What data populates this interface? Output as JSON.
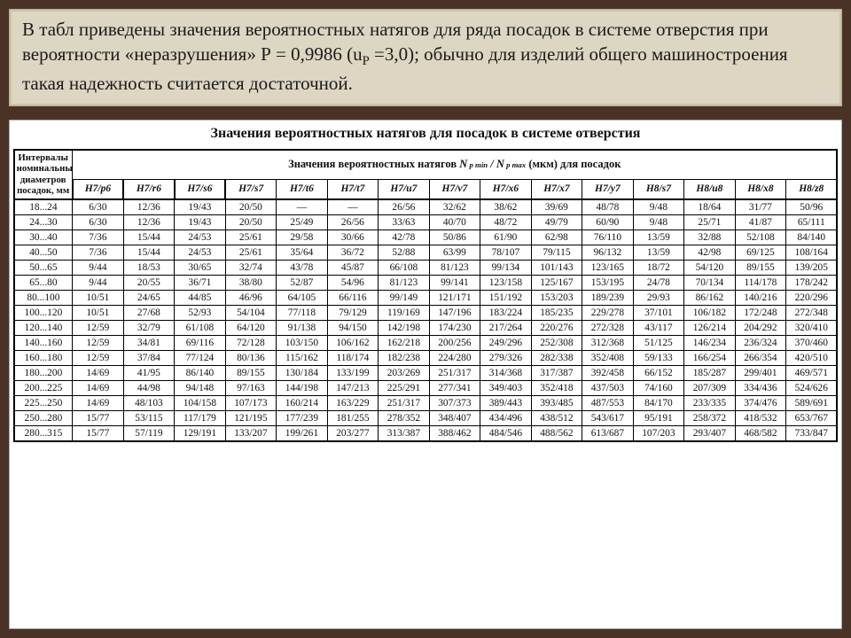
{
  "intro": {
    "text_a": "В табл приведены значения вероятностных натягов для ряда посадок в системе отверстия при вероятности «неразрушения» Р = 0,9986 (u",
    "text_sub": "P",
    "text_b": " =3,0); обычно для изделий общего машиностроения такая надежность считается достаточной."
  },
  "caption": "Значения вероятностных натягов для посадок в системе отверстия",
  "left_header": "Интервалы номинальных диаметров посадок, мм",
  "span_header_a": "Значения вероятностных натягов ",
  "span_header_b": " (мкм) для посадок",
  "fits": [
    "H7/p6",
    "H7/r6",
    "H7/s6",
    "H7/s7",
    "H7/t6",
    "H7/t7",
    "H7/u7",
    "H7/v7",
    "H7/x6",
    "H7/x7",
    "H7/y7",
    "H8/s7",
    "H8/u8",
    "H8/x8",
    "H8/z8"
  ],
  "rows": [
    {
      "range": "18...24",
      "cells": [
        "6/30",
        "12/36",
        "19/43",
        "20/50",
        "—",
        "—",
        "26/56",
        "32/62",
        "38/62",
        "39/69",
        "48/78",
        "9/48",
        "18/64",
        "31/77",
        "50/96"
      ]
    },
    {
      "range": "24...30",
      "cells": [
        "6/30",
        "12/36",
        "19/43",
        "20/50",
        "25/49",
        "26/56",
        "33/63",
        "40/70",
        "48/72",
        "49/79",
        "60/90",
        "9/48",
        "25/71",
        "41/87",
        "65/111"
      ]
    },
    {
      "range": "30...40",
      "cells": [
        "7/36",
        "15/44",
        "24/53",
        "25/61",
        "29/58",
        "30/66",
        "42/78",
        "50/86",
        "61/90",
        "62/98",
        "76/110",
        "13/59",
        "32/88",
        "52/108",
        "84/140"
      ]
    },
    {
      "range": "40...50",
      "cells": [
        "7/36",
        "15/44",
        "24/53",
        "25/61",
        "35/64",
        "36/72",
        "52/88",
        "63/99",
        "78/107",
        "79/115",
        "96/132",
        "13/59",
        "42/98",
        "69/125",
        "108/164"
      ]
    },
    {
      "range": "50...65",
      "cells": [
        "9/44",
        "18/53",
        "30/65",
        "32/74",
        "43/78",
        "45/87",
        "66/108",
        "81/123",
        "99/134",
        "101/143",
        "123/165",
        "18/72",
        "54/120",
        "89/155",
        "139/205"
      ]
    },
    {
      "range": "65...80",
      "cells": [
        "9/44",
        "20/55",
        "36/71",
        "38/80",
        "52/87",
        "54/96",
        "81/123",
        "99/141",
        "123/158",
        "125/167",
        "153/195",
        "24/78",
        "70/134",
        "114/178",
        "178/242"
      ]
    },
    {
      "range": "80...100",
      "cells": [
        "10/51",
        "24/65",
        "44/85",
        "46/96",
        "64/105",
        "66/116",
        "99/149",
        "121/171",
        "151/192",
        "153/203",
        "189/239",
        "29/93",
        "86/162",
        "140/216",
        "220/296"
      ]
    },
    {
      "range": "100...120",
      "cells": [
        "10/51",
        "27/68",
        "52/93",
        "54/104",
        "77/118",
        "79/129",
        "119/169",
        "147/196",
        "183/224",
        "185/235",
        "229/278",
        "37/101",
        "106/182",
        "172/248",
        "272/348"
      ]
    },
    {
      "range": "120...140",
      "cells": [
        "12/59",
        "32/79",
        "61/108",
        "64/120",
        "91/138",
        "94/150",
        "142/198",
        "174/230",
        "217/264",
        "220/276",
        "272/328",
        "43/117",
        "126/214",
        "204/292",
        "320/410"
      ]
    },
    {
      "range": "140...160",
      "cells": [
        "12/59",
        "34/81",
        "69/116",
        "72/128",
        "103/150",
        "106/162",
        "162/218",
        "200/256",
        "249/296",
        "252/308",
        "312/368",
        "51/125",
        "146/234",
        "236/324",
        "370/460"
      ]
    },
    {
      "range": "160...180",
      "cells": [
        "12/59",
        "37/84",
        "77/124",
        "80/136",
        "115/162",
        "118/174",
        "182/238",
        "224/280",
        "279/326",
        "282/338",
        "352/408",
        "59/133",
        "166/254",
        "266/354",
        "420/510"
      ]
    },
    {
      "range": "180...200",
      "cells": [
        "14/69",
        "41/95",
        "86/140",
        "89/155",
        "130/184",
        "133/199",
        "203/269",
        "251/317",
        "314/368",
        "317/387",
        "392/458",
        "66/152",
        "185/287",
        "299/401",
        "469/571"
      ]
    },
    {
      "range": "200...225",
      "cells": [
        "14/69",
        "44/98",
        "94/148",
        "97/163",
        "144/198",
        "147/213",
        "225/291",
        "277/341",
        "349/403",
        "352/418",
        "437/503",
        "74/160",
        "207/309",
        "334/436",
        "524/626"
      ]
    },
    {
      "range": "225...250",
      "cells": [
        "14/69",
        "48/103",
        "104/158",
        "107/173",
        "160/214",
        "163/229",
        "251/317",
        "307/373",
        "389/443",
        "393/485",
        "487/553",
        "84/170",
        "233/335",
        "374/476",
        "589/691"
      ]
    },
    {
      "range": "250...280",
      "cells": [
        "15/77",
        "53/115",
        "117/179",
        "121/195",
        "177/239",
        "181/255",
        "278/352",
        "348/407",
        "434/496",
        "438/512",
        "543/617",
        "95/191",
        "258/372",
        "418/532",
        "653/767"
      ]
    },
    {
      "range": "280...315",
      "cells": [
        "15/77",
        "57/119",
        "129/191",
        "133/207",
        "199/261",
        "203/277",
        "313/387",
        "388/462",
        "484/546",
        "488/562",
        "613/687",
        "107/203",
        "293/407",
        "468/582",
        "733/847"
      ]
    }
  ],
  "style": {
    "background": "#4a3326",
    "intro_bg": "#dcd6c2",
    "row_header_width": 66,
    "cell_width": 57.5,
    "font_main": 11.4,
    "font_caption": 16,
    "font_intro": 21
  }
}
